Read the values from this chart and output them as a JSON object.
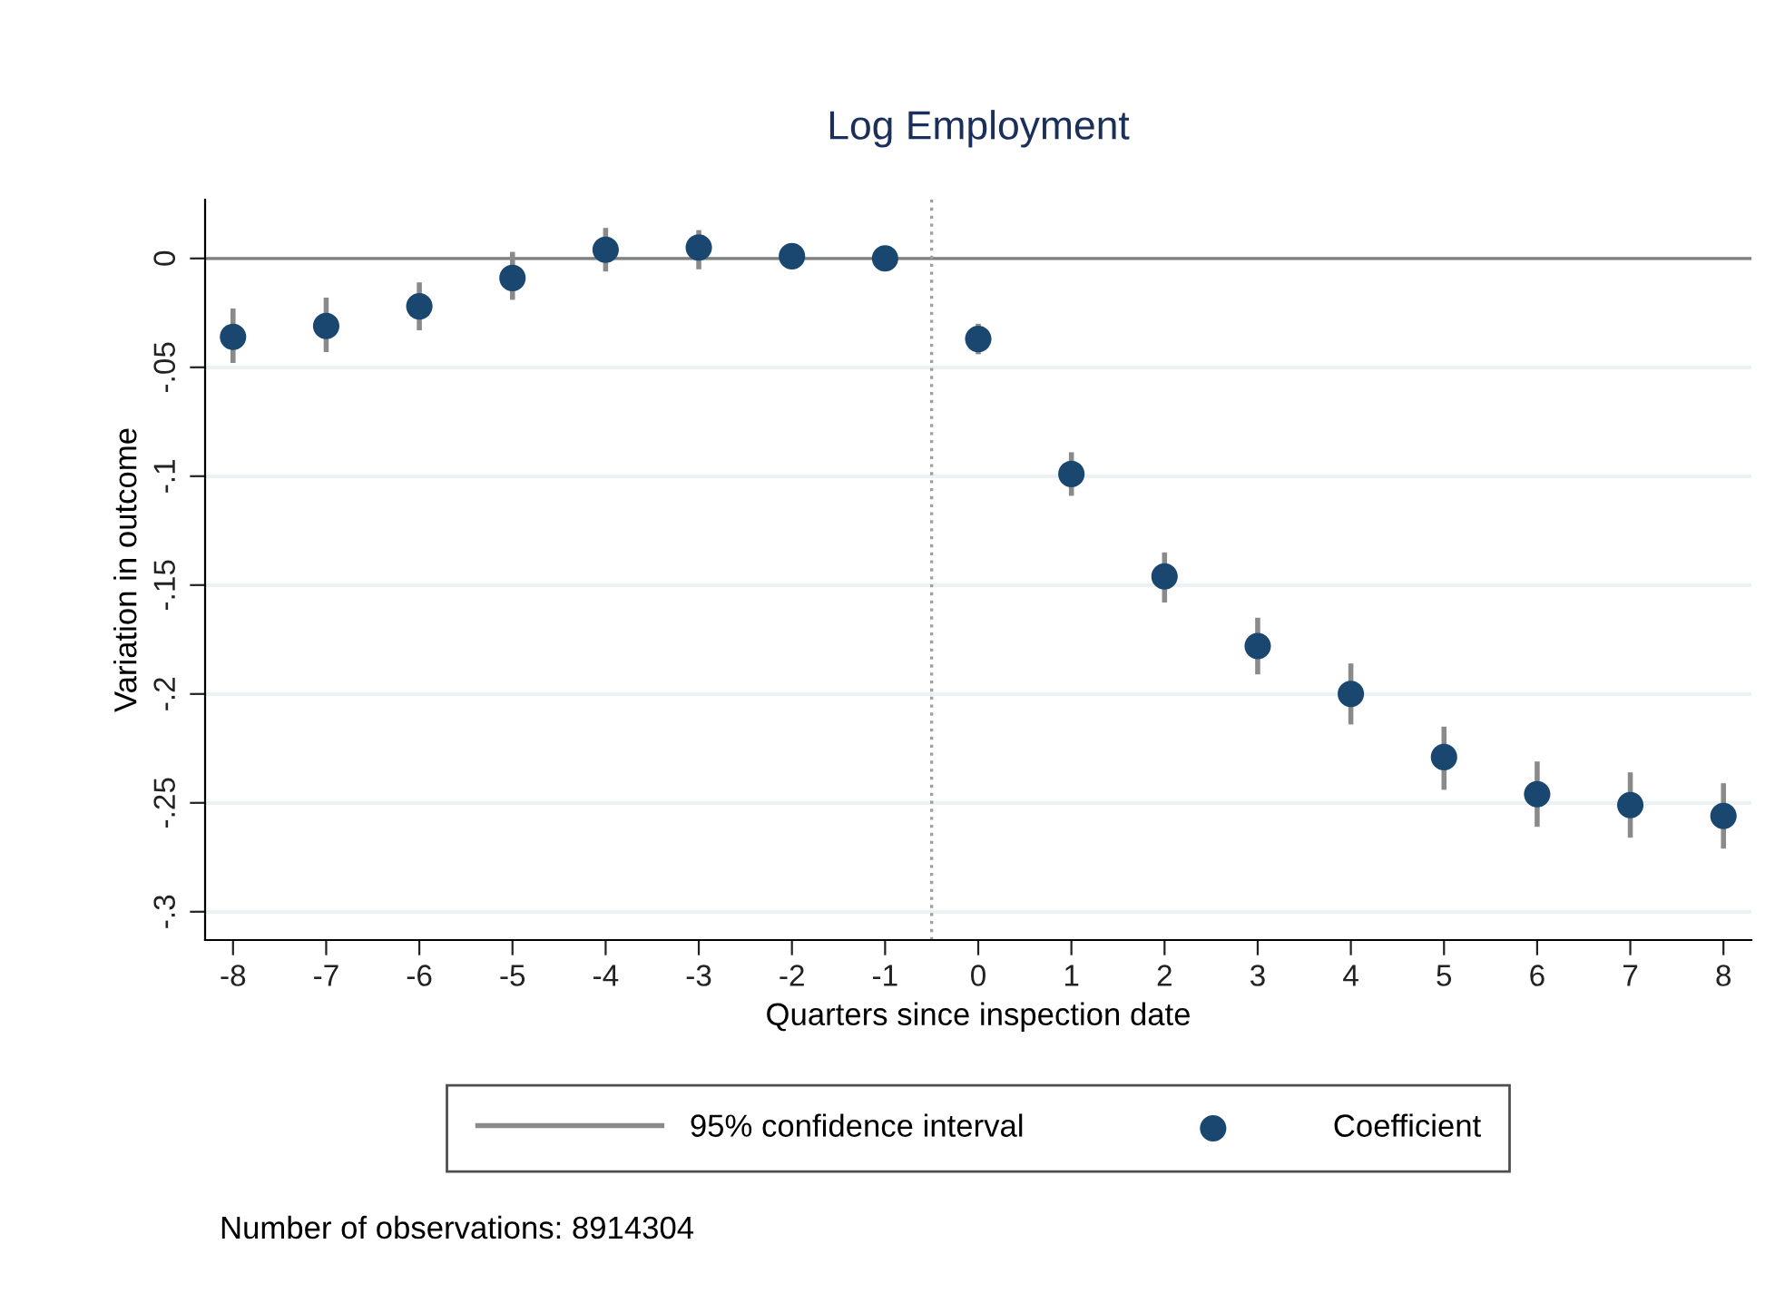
{
  "chart_data": {
    "type": "scatter",
    "title": "Log Employment",
    "xlabel": "Quarters since inspection date",
    "ylabel": "Variation in outcome",
    "x": [
      -8,
      -7,
      -6,
      -5,
      -4,
      -3,
      -2,
      -1,
      0,
      1,
      2,
      3,
      4,
      5,
      6,
      7,
      8
    ],
    "series": [
      {
        "name": "Coefficient",
        "color": "#1a476f",
        "values": [
          -0.036,
          -0.031,
          -0.022,
          -0.009,
          0.004,
          0.005,
          0.001,
          0,
          -0.037,
          -0.099,
          -0.146,
          -0.178,
          -0.2,
          -0.229,
          -0.246,
          -0.251,
          -0.256
        ],
        "errors": [
          [
            -0.048,
            -0.023
          ],
          [
            -0.043,
            -0.018
          ],
          [
            -0.033,
            -0.011
          ],
          [
            -0.019,
            0.003
          ],
          [
            -0.006,
            0.014
          ],
          [
            -0.005,
            0.013
          ],
          [
            -0.004,
            0.006
          ],
          null,
          [
            -0.044,
            -0.03
          ],
          [
            -0.109,
            -0.089
          ],
          [
            -0.158,
            -0.135
          ],
          [
            -0.191,
            -0.165
          ],
          [
            -0.214,
            -0.186
          ],
          [
            -0.244,
            -0.215
          ],
          [
            -0.261,
            -0.231
          ],
          [
            -0.266,
            -0.236
          ],
          [
            -0.271,
            -0.241
          ]
        ]
      }
    ],
    "xlim": [
      -8.3,
      8.3
    ],
    "xticks": [
      -8,
      -7,
      -6,
      -5,
      -4,
      -3,
      -2,
      -1,
      0,
      1,
      2,
      3,
      4,
      5,
      6,
      7,
      8
    ],
    "ylim": [
      -0.313,
      0.027
    ],
    "yticks": [
      {
        "value": 0,
        "label": "0"
      },
      {
        "value": -0.05,
        "label": "-.05"
      },
      {
        "value": -0.1,
        "label": "-.1"
      },
      {
        "value": -0.15,
        "label": "-.15"
      },
      {
        "value": -0.2,
        "label": "-.2"
      },
      {
        "value": -0.25,
        "label": "-.25"
      },
      {
        "value": -0.3,
        "label": "-.3"
      }
    ],
    "ref_lines": [
      {
        "axis": "y",
        "value": 0,
        "color": "#7f7f7f",
        "line_style": "solid"
      },
      {
        "axis": "x",
        "value": -0.5,
        "color": "#a0a0a0",
        "line_style": "dotted"
      }
    ],
    "grid": "y",
    "legend": "bottom",
    "marker": "circle",
    "annotations": [
      "95% confidence interval",
      "Number of observations: 8914304"
    ]
  }
}
